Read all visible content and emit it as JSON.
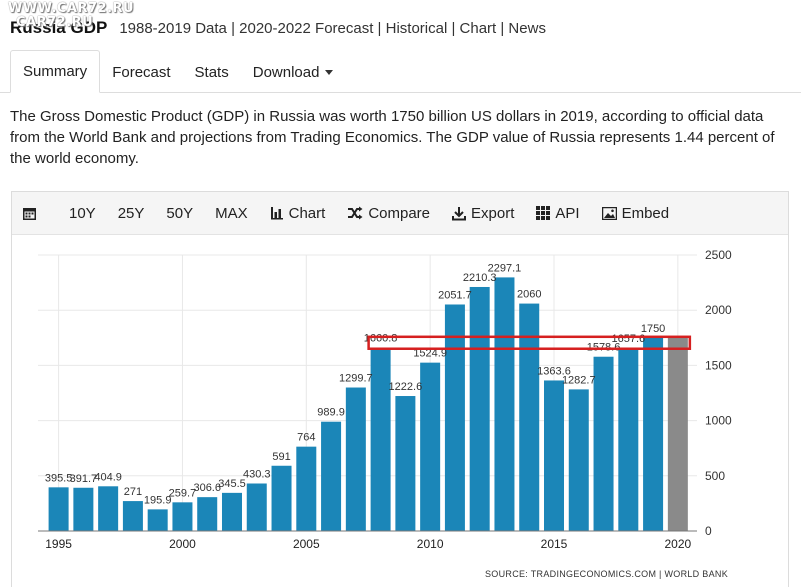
{
  "watermark": [
    "WWW.CAR72.RU",
    "CAR72.RU"
  ],
  "header": {
    "title": "Russia GDP",
    "subtitle": "1988-2019 Data | 2020-2022 Forecast | Historical | Chart | News"
  },
  "tabs": [
    {
      "label": "Summary",
      "active": true
    },
    {
      "label": "Forecast"
    },
    {
      "label": "Stats"
    },
    {
      "label": "Download"
    }
  ],
  "description": "The Gross Domestic Product (GDP) in Russia was worth 1750 billion US dollars in 2019, according to official data from the World Bank and projections from Trading Economics. The GDP value of Russia represents 1.44 percent of the world economy.",
  "toolbar": {
    "items": [
      {
        "label": "",
        "icon": "calendar-icon"
      },
      {
        "label": "10Y"
      },
      {
        "label": "25Y"
      },
      {
        "label": "50Y"
      },
      {
        "label": "MAX"
      },
      {
        "label": "Chart",
        "icon": "bar-chart-icon"
      },
      {
        "label": "Compare",
        "icon": "shuffle-icon"
      },
      {
        "label": "Export",
        "icon": "download-icon"
      },
      {
        "label": "API",
        "icon": "grid-icon"
      },
      {
        "label": "Embed",
        "icon": "image-icon"
      }
    ]
  },
  "colors": {
    "bar": "#1b86b8",
    "forecast_bar": "#8a8a8a",
    "highlight": "#d62020",
    "grid": "#e8e8e8"
  },
  "chart_data": {
    "type": "bar",
    "x": [
      1995,
      1996,
      1997,
      1998,
      1999,
      2000,
      2001,
      2002,
      2003,
      2004,
      2005,
      2006,
      2007,
      2008,
      2009,
      2010,
      2011,
      2012,
      2013,
      2014,
      2015,
      2016,
      2017,
      2018,
      2019,
      2020
    ],
    "values": [
      395.5,
      391.7,
      404.9,
      271,
      195.9,
      259.7,
      306.6,
      345.5,
      430.3,
      591,
      764,
      989.9,
      1299.7,
      1660.8,
      1222.6,
      1524.9,
      2051.7,
      2210.3,
      2297.1,
      2060,
      1363.6,
      1282.7,
      1578.6,
      1657.6,
      1750,
      1750
    ],
    "data_labels": [
      "395.5",
      "391.7",
      "404.9",
      "271",
      "195.9",
      "259.7",
      "306.6",
      "345.5",
      "430.3",
      "591",
      "764",
      "989.9",
      "1299.7",
      "1660.8",
      "1222.6",
      "1524.9",
      "2051.7",
      "2210.3",
      "2297.1",
      "2060",
      "1363.6",
      "1282.7",
      "1578.6",
      "1657.6",
      "1750",
      ""
    ],
    "forecast_index": 25,
    "x_ticks": [
      1995,
      2000,
      2005,
      2010,
      2015,
      2020
    ],
    "y_ticks": [
      0,
      500,
      1000,
      1500,
      2000,
      2500
    ],
    "ylim": [
      0,
      2500
    ],
    "grid": true,
    "highlight_range": [
      1660,
      1750
    ],
    "source": "SOURCE: TRADINGECONOMICS.COM  |  WORLD BANK"
  }
}
